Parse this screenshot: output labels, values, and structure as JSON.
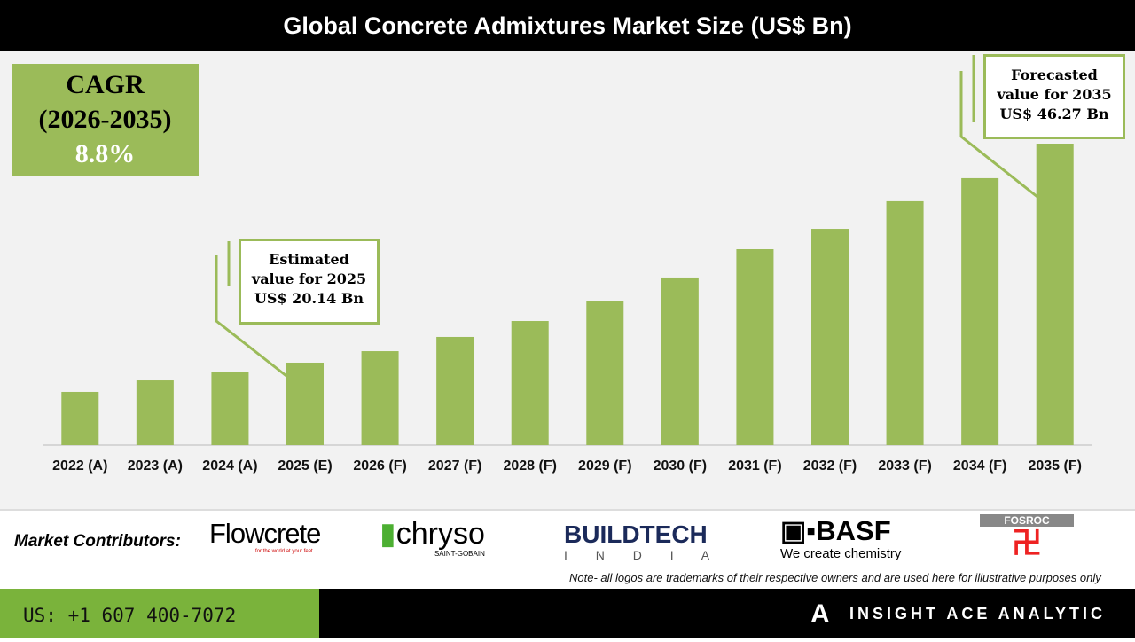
{
  "title": "Global Concrete Admixtures Market Size (US$ Bn)",
  "cagr": {
    "label": "CAGR",
    "period": "(2026-2035)",
    "value": "8.8%"
  },
  "callouts": {
    "estimated": [
      "Estimated",
      "value for 2025",
      "US$ 20.14 Bn"
    ],
    "forecasted": [
      "Forecasted",
      "value for 2035",
      "US$ 46.27 Bn"
    ]
  },
  "chart_data": {
    "type": "bar",
    "title": "Global Concrete Admixtures Market Size (US$ Bn)",
    "categories": [
      "2022 (A)",
      "2023 (A)",
      "2024 (A)",
      "2025 (E)",
      "2026 (F)",
      "2027 (F)",
      "2028 (F)",
      "2029 (F)",
      "2030 (F)",
      "2031 (F)",
      "2032 (F)",
      "2033 (F)",
      "2034 (F)",
      "2035 (F)"
    ],
    "values": [
      16.65,
      18.02,
      18.98,
      20.14,
      21.51,
      23.21,
      25.11,
      27.44,
      30.3,
      33.68,
      36.11,
      39.4,
      42.15,
      46.27
    ],
    "grid": false,
    "color": "#9bbb59"
  },
  "footer": {
    "contributors_label": "Market Contributors:",
    "logos": [
      "Flowcrete",
      "for the world at your feet",
      "chryso",
      "SAINT-GOBAIN",
      "BUILDTECH",
      "I N D I A",
      "BASF",
      "We create chemistry",
      "FOSROC"
    ],
    "note": "Note- all logos are trademarks of their respective owners and are used here for illustrative purposes only",
    "phone": "US: +1 607 400-7072",
    "brand": "INSIGHT ACE ANALYTIC"
  }
}
